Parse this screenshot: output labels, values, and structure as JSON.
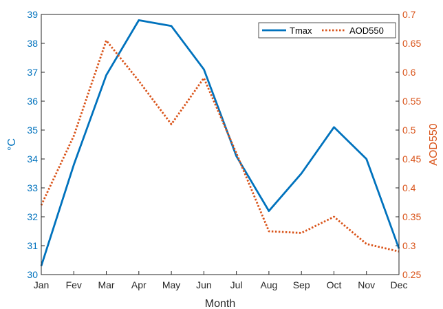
{
  "chart_data": {
    "type": "line",
    "categories": [
      "Jan",
      "Fev",
      "Mar",
      "Apr",
      "May",
      "Jun",
      "Jul",
      "Aug",
      "Sep",
      "Oct",
      "Nov",
      "Dec"
    ],
    "xlabel": "Month",
    "series": [
      {
        "name": "Tmax",
        "axis": "left",
        "style": "solid",
        "color": "#0072BD",
        "values": [
          30.3,
          33.8,
          36.9,
          38.8,
          38.6,
          37.1,
          34.1,
          32.2,
          33.5,
          35.1,
          34.0,
          30.9
        ]
      },
      {
        "name": "AOD550",
        "axis": "right",
        "style": "dotted",
        "color": "#D95319",
        "values": [
          0.37,
          0.49,
          0.655,
          0.585,
          0.51,
          0.59,
          0.46,
          0.325,
          0.322,
          0.35,
          0.303,
          0.29
        ]
      }
    ],
    "y_left": {
      "label": "°C",
      "color": "#0072BD",
      "ylim": [
        30,
        39
      ],
      "ticks": [
        "30",
        "31",
        "32",
        "33",
        "34",
        "35",
        "36",
        "37",
        "38",
        "39"
      ]
    },
    "y_right": {
      "label": "AOD550",
      "color": "#D95319",
      "ylim": [
        0.25,
        0.7
      ],
      "ticks": [
        "0.25",
        "0.3",
        "0.35",
        "0.4",
        "0.45",
        "0.5",
        "0.55",
        "0.6",
        "0.65",
        "0.7"
      ]
    },
    "grid": false,
    "legend": {
      "placement": "top-right",
      "entries": [
        "Tmax",
        "AOD550"
      ]
    }
  }
}
